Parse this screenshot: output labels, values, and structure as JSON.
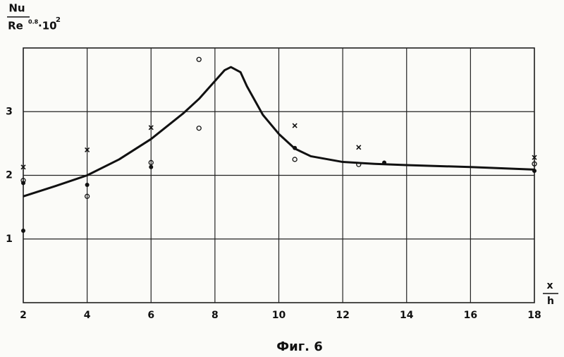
{
  "chart_data": {
    "type": "line",
    "caption": "Фиг. 6",
    "y_label": {
      "numerator": "Nu",
      "denominator": "Re",
      "exponent": "0.8",
      "factor": "·10",
      "factor_exponent": "2"
    },
    "x_label": {
      "numerator": "x",
      "denominator": "h"
    },
    "xlim": [
      2,
      18
    ],
    "xticks": [
      2,
      4,
      6,
      8,
      10,
      12,
      14,
      16,
      18
    ],
    "ylim": [
      0,
      4
    ],
    "yticks": [
      1,
      2,
      3
    ],
    "grid": true,
    "series": [
      {
        "type": "line",
        "color": "#111111",
        "x": [
          2,
          3,
          4,
          5,
          6,
          7,
          7.5,
          8,
          8.3,
          8.5,
          8.8,
          9,
          9.5,
          10,
          10.5,
          11,
          12,
          13,
          14,
          16,
          18
        ],
        "values": [
          1.67,
          1.83,
          2.0,
          2.25,
          2.57,
          2.97,
          3.2,
          3.48,
          3.65,
          3.7,
          3.62,
          3.4,
          2.95,
          2.65,
          2.42,
          2.3,
          2.21,
          2.18,
          2.16,
          2.13,
          2.09
        ]
      },
      {
        "type": "scatter",
        "marker": "cross",
        "color": "#111111",
        "x": [
          2,
          4,
          6,
          10.5,
          12.5,
          18
        ],
        "values": [
          2.13,
          2.4,
          2.75,
          2.78,
          2.44,
          2.28
        ]
      },
      {
        "type": "scatter",
        "marker": "circle",
        "color": "#111111",
        "x": [
          2,
          4,
          6,
          7.5,
          7.5,
          10.5,
          12.5,
          18
        ],
        "values": [
          1.92,
          1.67,
          2.2,
          3.82,
          2.74,
          2.25,
          2.17,
          2.18
        ]
      },
      {
        "type": "scatter",
        "marker": "dot",
        "color": "#111111",
        "x": [
          2,
          2,
          4,
          6,
          10.5,
          13.3,
          18
        ],
        "values": [
          1.88,
          1.13,
          1.85,
          2.13,
          2.43,
          2.2,
          2.07
        ]
      }
    ]
  }
}
